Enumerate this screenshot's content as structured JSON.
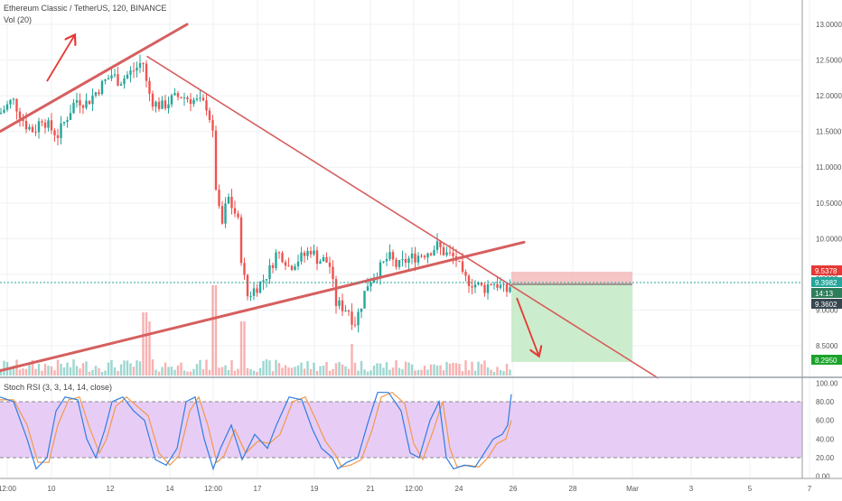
{
  "header": {
    "title": "Ethereum Classic / TetherUS, 120, BINANCE",
    "volume_label": "Vol (20)"
  },
  "indicator": {
    "label": "Stoch RSI (3, 3, 14, 14, close)"
  },
  "colors": {
    "up": "#26a69a",
    "down": "#ef5350",
    "trendline": "#d65f5f",
    "arrow": "#e53935",
    "stop_zone": "#f4b6b6",
    "target_zone": "#c6ebc8",
    "rsi_band": "#e3c4f5",
    "k_line": "#2f7de1",
    "d_line": "#f2994a"
  },
  "price_axis": {
    "ticks": [
      "13.0000",
      "12.5000",
      "12.0000",
      "11.5000",
      "11.0000",
      "10.5000",
      "10.0000",
      "9.5000",
      "9.0000",
      "8.5000"
    ]
  },
  "price_badges": [
    {
      "text": "9.5378",
      "color": "#e53935"
    },
    {
      "text": "9.3982",
      "color": "#26a69a"
    },
    {
      "text": "14:13",
      "color": "#2e7d5b"
    },
    {
      "text": "9.3602",
      "color": "#37474f"
    },
    {
      "text": "8.2950",
      "color": "#1aa32a"
    }
  ],
  "rsi_axis": {
    "ticks": [
      "100.00",
      "80.00",
      "60.00",
      "40.00",
      "20.00",
      "0.00"
    ]
  },
  "time_axis": {
    "ticks": [
      "12:00",
      "10",
      "12",
      "14",
      "12:00",
      "17",
      "19",
      "21",
      "12:00",
      "24",
      "26",
      "28",
      "Mar",
      "3",
      "5",
      "7"
    ]
  },
  "chart_data": {
    "type": "candlestick",
    "symbol": "Ethereum Classic / TetherUS",
    "interval": "120",
    "exchange": "BINANCE",
    "ylim": [
      8.1,
      13.2
    ],
    "key_levels": {
      "stop": 9.5378,
      "entry": 9.3982,
      "current": 9.3602,
      "target": 8.295
    },
    "close_path": [
      [
        0,
        11.75
      ],
      [
        14,
        11.95
      ],
      [
        28,
        11.6
      ],
      [
        38,
        11.5
      ],
      [
        46,
        11.7
      ],
      [
        55,
        11.55
      ],
      [
        64,
        11.45
      ],
      [
        74,
        11.7
      ],
      [
        84,
        11.95
      ],
      [
        96,
        11.9
      ],
      [
        106,
        12.05
      ],
      [
        116,
        12.2
      ],
      [
        124,
        12.3
      ],
      [
        132,
        12.2
      ],
      [
        142,
        12.3
      ],
      [
        152,
        12.4
      ],
      [
        158,
        12.5
      ],
      [
        163,
        12.1
      ],
      [
        170,
        11.9
      ],
      [
        180,
        11.85
      ],
      [
        190,
        11.95
      ],
      [
        200,
        12.0
      ],
      [
        212,
        11.95
      ],
      [
        222,
        11.9
      ],
      [
        230,
        11.85
      ],
      [
        236,
        11.4
      ],
      [
        240,
        10.5
      ],
      [
        246,
        10.2
      ],
      [
        252,
        10.6
      ],
      [
        258,
        10.4
      ],
      [
        263,
        10.3
      ],
      [
        268,
        9.6
      ],
      [
        274,
        9.2
      ],
      [
        282,
        9.3
      ],
      [
        290,
        9.4
      ],
      [
        298,
        9.55
      ],
      [
        306,
        9.8
      ],
      [
        314,
        9.75
      ],
      [
        320,
        9.6
      ],
      [
        328,
        9.7
      ],
      [
        336,
        9.75
      ],
      [
        344,
        9.85
      ],
      [
        352,
        9.7
      ],
      [
        360,
        9.7
      ],
      [
        366,
        9.6
      ],
      [
        371,
        9.1
      ],
      [
        378,
        9.05
      ],
      [
        386,
        9.0
      ],
      [
        392,
        8.8
      ],
      [
        398,
        9.0
      ],
      [
        406,
        9.35
      ],
      [
        414,
        9.5
      ],
      [
        422,
        9.6
      ],
      [
        430,
        9.75
      ],
      [
        440,
        9.6
      ],
      [
        450,
        9.7
      ],
      [
        460,
        9.75
      ],
      [
        470,
        9.8
      ],
      [
        478,
        9.85
      ],
      [
        484,
        9.9
      ],
      [
        492,
        9.8
      ],
      [
        500,
        9.75
      ],
      [
        506,
        9.7
      ],
      [
        512,
        9.45
      ],
      [
        520,
        9.4
      ],
      [
        528,
        9.35
      ],
      [
        536,
        9.3
      ],
      [
        544,
        9.4
      ],
      [
        552,
        9.35
      ],
      [
        560,
        9.25
      ],
      [
        566,
        9.36
      ]
    ],
    "trendlines": [
      {
        "from": [
          0,
          11.5
        ],
        "to": [
          207,
          13.0
        ]
      },
      {
        "from": [
          163,
          12.55
        ],
        "to": [
          728,
          8.05
        ]
      },
      {
        "from": [
          0,
          8.15
        ],
        "to": [
          580,
          9.95
        ]
      }
    ],
    "stoch_rsi": {
      "ylim": [
        0,
        100
      ],
      "bands": [
        20,
        80
      ],
      "k_path": [
        [
          0,
          85
        ],
        [
          15,
          80
        ],
        [
          30,
          40
        ],
        [
          40,
          8
        ],
        [
          52,
          20
        ],
        [
          62,
          70
        ],
        [
          72,
          85
        ],
        [
          86,
          82
        ],
        [
          96,
          40
        ],
        [
          106,
          20
        ],
        [
          116,
          50
        ],
        [
          124,
          80
        ],
        [
          136,
          85
        ],
        [
          148,
          70
        ],
        [
          160,
          60
        ],
        [
          172,
          18
        ],
        [
          184,
          12
        ],
        [
          196,
          30
        ],
        [
          206,
          80
        ],
        [
          216,
          85
        ],
        [
          226,
          40
        ],
        [
          236,
          8
        ],
        [
          244,
          30
        ],
        [
          256,
          55
        ],
        [
          268,
          18
        ],
        [
          282,
          45
        ],
        [
          296,
          30
        ],
        [
          306,
          55
        ],
        [
          320,
          85
        ],
        [
          334,
          82
        ],
        [
          346,
          50
        ],
        [
          356,
          30
        ],
        [
          368,
          20
        ],
        [
          374,
          8
        ],
        [
          384,
          15
        ],
        [
          396,
          20
        ],
        [
          408,
          60
        ],
        [
          418,
          90
        ],
        [
          430,
          90
        ],
        [
          444,
          70
        ],
        [
          454,
          25
        ],
        [
          464,
          20
        ],
        [
          476,
          60
        ],
        [
          486,
          80
        ],
        [
          494,
          20
        ],
        [
          502,
          8
        ],
        [
          514,
          12
        ],
        [
          526,
          10
        ],
        [
          536,
          25
        ],
        [
          546,
          40
        ],
        [
          556,
          45
        ],
        [
          562,
          55
        ],
        [
          566,
          88
        ]
      ],
      "d_path": [
        [
          0,
          82
        ],
        [
          15,
          82
        ],
        [
          30,
          55
        ],
        [
          42,
          15
        ],
        [
          54,
          15
        ],
        [
          64,
          55
        ],
        [
          76,
          82
        ],
        [
          88,
          85
        ],
        [
          98,
          55
        ],
        [
          110,
          25
        ],
        [
          118,
          40
        ],
        [
          128,
          75
        ],
        [
          140,
          85
        ],
        [
          152,
          75
        ],
        [
          164,
          65
        ],
        [
          176,
          25
        ],
        [
          188,
          12
        ],
        [
          198,
          22
        ],
        [
          210,
          70
        ],
        [
          220,
          85
        ],
        [
          230,
          55
        ],
        [
          240,
          15
        ],
        [
          248,
          22
        ],
        [
          260,
          50
        ],
        [
          272,
          25
        ],
        [
          286,
          38
        ],
        [
          298,
          35
        ],
        [
          310,
          45
        ],
        [
          324,
          80
        ],
        [
          338,
          85
        ],
        [
          350,
          60
        ],
        [
          360,
          38
        ],
        [
          372,
          22
        ],
        [
          378,
          10
        ],
        [
          388,
          12
        ],
        [
          400,
          18
        ],
        [
          412,
          50
        ],
        [
          422,
          85
        ],
        [
          434,
          90
        ],
        [
          448,
          78
        ],
        [
          458,
          35
        ],
        [
          468,
          18
        ],
        [
          480,
          50
        ],
        [
          490,
          80
        ],
        [
          498,
          30
        ],
        [
          506,
          10
        ],
        [
          518,
          12
        ],
        [
          530,
          10
        ],
        [
          540,
          20
        ],
        [
          550,
          35
        ],
        [
          560,
          40
        ],
        [
          566,
          60
        ]
      ]
    }
  }
}
